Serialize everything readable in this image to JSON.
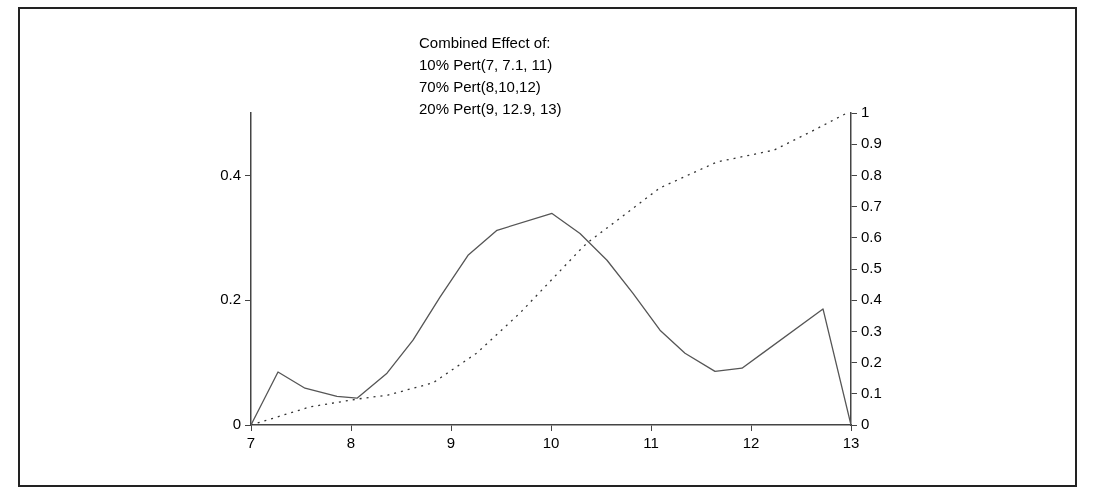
{
  "chart_data": {
    "type": "line",
    "annotations": [
      "Combined Effect of:",
      "10% Pert(7, 7.1, 11)",
      "70% Pert(8,10,12)",
      "20% Pert(9, 12.9, 13)"
    ],
    "series": [
      {
        "color": "#555555",
        "line_style": "solid",
        "x": [
          7,
          7.27,
          7.54,
          7.86,
          8.06,
          8.36,
          8.62,
          8.89,
          9.17,
          9.46,
          10.01,
          10.29,
          10.56,
          10.82,
          11.09,
          11.34,
          11.64,
          11.91,
          12.72,
          13
        ],
        "values": [
          0,
          0.085,
          0.059,
          0.046,
          0.043,
          0.083,
          0.136,
          0.205,
          0.272,
          0.312,
          0.339,
          0.307,
          0.264,
          0.211,
          0.152,
          0.115,
          0.086,
          0.091,
          0.186,
          0
        ]
      },
      {
        "color": "#333333",
        "line_style": "dotted",
        "axis": "y2",
        "x": [
          7,
          7.59,
          8.06,
          8.37,
          8.82,
          9.26,
          9.69,
          10.29,
          10.36,
          11.09,
          11.66,
          12.23,
          12.63,
          12.96
        ],
        "values": [
          0,
          0.058,
          0.083,
          0.096,
          0.135,
          0.231,
          0.359,
          0.561,
          0.583,
          0.76,
          0.843,
          0.881,
          0.945,
          1.0
        ]
      }
    ],
    "xlim": [
      7,
      13
    ],
    "xticks": [
      7,
      8,
      9,
      10,
      11,
      12,
      13
    ],
    "ylim": [
      0,
      0.5
    ],
    "yticks": [
      0,
      0.2,
      0.4
    ],
    "y2lim": [
      0,
      1
    ],
    "y2ticks": [
      0,
      0.1,
      0.2,
      0.3,
      0.4,
      0.5,
      0.6,
      0.7,
      0.8,
      0.9,
      1
    ],
    "grid": false,
    "legend": false,
    "marker": "none"
  }
}
